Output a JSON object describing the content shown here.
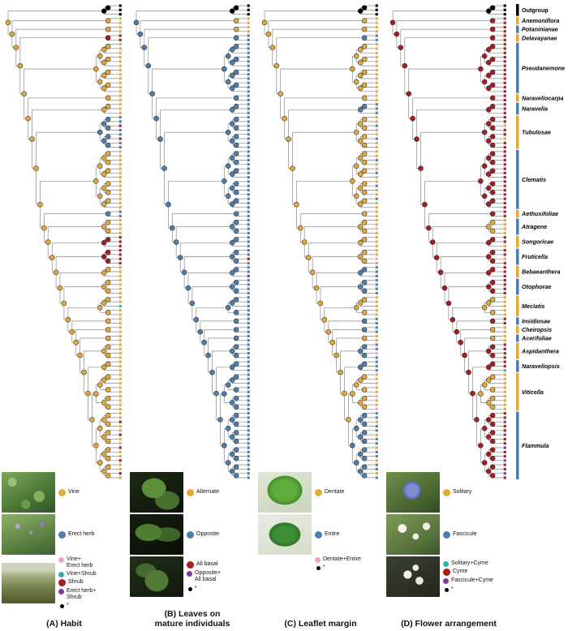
{
  "figure": {
    "colors": {
      "Y": "#E2A93B",
      "B": "#4E7FAC",
      "R": "#A61E22",
      "T": "#3AADA8",
      "P": "#F2A3C5",
      "V": "#7C3E98",
      "K": "#000000"
    },
    "clades": [
      {
        "name": "Outgroup",
        "tips": 3,
        "bar": "K",
        "italic": false
      },
      {
        "name": "Anemoniflora",
        "tips": 2,
        "bar": "Y",
        "italic": true
      },
      {
        "name": "Potaninianae",
        "tips": 2,
        "bar": "B",
        "italic": true
      },
      {
        "name": "Delavayanae",
        "tips": 2,
        "bar": "Y",
        "italic": true
      },
      {
        "name": "Pseudanemone",
        "tips": 12,
        "bar": "B",
        "italic": true
      },
      {
        "name": "Naraveliocarpa",
        "tips": 2,
        "bar": "Y",
        "italic": true
      },
      {
        "name": "Naravelia",
        "tips": 3,
        "bar": "B",
        "italic": true
      },
      {
        "name": "Tubulosae",
        "tips": 8,
        "bar": "Y",
        "italic": true
      },
      {
        "name": "Clematis",
        "tips": 14,
        "bar": "B",
        "italic": true
      },
      {
        "name": "Aethusifoliae",
        "tips": 2,
        "bar": "Y",
        "italic": true
      },
      {
        "name": "Atragene",
        "tips": 4,
        "bar": "B",
        "italic": true
      },
      {
        "name": "Songoricae",
        "tips": 3,
        "bar": "Y",
        "italic": true
      },
      {
        "name": "Fruticella",
        "tips": 4,
        "bar": "B",
        "italic": true
      },
      {
        "name": "Bebaeanthera",
        "tips": 3,
        "bar": "Y",
        "italic": true
      },
      {
        "name": "Otophorae",
        "tips": 4,
        "bar": "B",
        "italic": true
      },
      {
        "name": "Meclatis",
        "tips": 5,
        "bar": "Y",
        "italic": true
      },
      {
        "name": "Insidiosae",
        "tips": 2,
        "bar": "B",
        "italic": true
      },
      {
        "name": "Cheiropsis",
        "tips": 2,
        "bar": "Y",
        "italic": true
      },
      {
        "name": "Acerifoliae",
        "tips": 2,
        "bar": "B",
        "italic": true
      },
      {
        "name": "Aspidanthera",
        "tips": 4,
        "bar": "Y",
        "italic": true
      },
      {
        "name": "Naraveliopsis",
        "tips": 3,
        "bar": "B",
        "italic": true
      },
      {
        "name": "Viticella",
        "tips": 9,
        "bar": "Y",
        "italic": true
      },
      {
        "name": "Flammula",
        "tips": 16,
        "bar": "B",
        "italic": true
      }
    ],
    "panels": [
      {
        "id": "A",
        "title": "(A) Habit",
        "backbone": "Y",
        "clade_states": [
          "K",
          "Y",
          "Y",
          "R",
          "Y",
          "Y",
          "Y",
          [
            "B",
            "R"
          ],
          "Y",
          "B",
          "Y",
          "R",
          "R",
          "Y",
          "Y",
          [
            "Y",
            "T"
          ],
          "Y",
          "Y",
          "Y",
          "Y",
          "Y",
          "Y",
          [
            "Y",
            "R"
          ]
        ],
        "legend_rows": [
          {
            "photo": "vine-photo",
            "items": [
              {
                "label": "Vine",
                "color": "Y",
                "big": true
              }
            ]
          },
          {
            "photo": "erect-herb-photo",
            "items": [
              {
                "label": "Erect herb",
                "color": "B",
                "big": true
              }
            ]
          },
          {
            "photo": "shrub-photo",
            "items": [
              {
                "label": "Vine+|Erect herb",
                "color": "P"
              },
              {
                "label": "Vine+Shrub",
                "color": "T"
              },
              {
                "label": "Shrub",
                "color": "R",
                "big": true
              },
              {
                "label": "Erect herb+|Shrub",
                "color": "V"
              },
              {
                "label": "*",
                "color": "K",
                "star": true
              }
            ]
          }
        ]
      },
      {
        "id": "B",
        "title": "(B) Leaves on\nmature individuals",
        "backbone": "B",
        "clade_states": [
          "K",
          "Y",
          "Y",
          "B",
          "B",
          "B",
          "B",
          "B",
          "B",
          "B",
          "B",
          "B",
          [
            "B",
            "R"
          ],
          [
            "B",
            "V"
          ],
          "B",
          "B",
          "B",
          "B",
          "B",
          "B",
          "B",
          "B",
          "B"
        ],
        "legend_rows": [
          {
            "photo": "alternate-leaves-photo",
            "items": [
              {
                "label": "Alternate",
                "color": "Y",
                "big": true
              }
            ]
          },
          {
            "photo": "opposite-leaves-photo",
            "items": [
              {
                "label": "Opposite",
                "color": "B",
                "big": true
              }
            ]
          },
          {
            "photo": "basal-leaves-photo",
            "items": [
              {
                "label": "All basal",
                "color": "R",
                "big": true
              },
              {
                "label": "Opposite+|All basal",
                "color": "V"
              },
              {
                "label": "*",
                "color": "K",
                "star": true
              }
            ]
          }
        ]
      },
      {
        "id": "C",
        "title": "(C) Leaflet margin",
        "backbone": "Y",
        "clade_states": [
          "K",
          "Y",
          "Y",
          "B",
          "Y",
          "Y",
          "B",
          [
            "Y",
            "B"
          ],
          [
            "Y",
            "B"
          ],
          "Y",
          [
            "Y",
            "P"
          ],
          "Y",
          [
            "Y",
            "P"
          ],
          "B",
          "B",
          "Y",
          "B",
          "B",
          "Y",
          [
            "B",
            "P"
          ],
          "B",
          [
            "Y",
            "P"
          ],
          [
            "B",
            "Y"
          ]
        ],
        "legend_rows": [
          {
            "photo": "dentate-leaf-photo",
            "items": [
              {
                "label": "Dentate",
                "color": "Y",
                "big": true
              }
            ]
          },
          {
            "photo": "entire-leaf-photo",
            "items": [
              {
                "label": "Entire",
                "color": "B",
                "big": true
              }
            ]
          },
          {
            "photo": null,
            "items": [
              {
                "label": "Dentate+Entire",
                "color": "P"
              },
              {
                "label": "*",
                "color": "K",
                "star": true
              }
            ]
          }
        ]
      },
      {
        "id": "D",
        "title": "(D) Flower arrangement",
        "backbone": "R",
        "clade_states": [
          "K",
          "R",
          "R",
          "R",
          "R",
          "R",
          "R",
          [
            "R",
            "Y"
          ],
          "R",
          "R",
          "Y",
          [
            "R",
            "Y"
          ],
          [
            "R",
            "Y"
          ],
          "R",
          "R",
          "Y",
          "R",
          "Y",
          "Y",
          "R",
          [
            "R",
            "T"
          ],
          "Y",
          [
            "R",
            "V"
          ]
        ],
        "legend_rows": [
          {
            "photo": "solitary-flower-photo",
            "items": [
              {
                "label": "Solitary",
                "color": "Y",
                "big": true
              }
            ]
          },
          {
            "photo": "fascicule-flowers-photo",
            "items": [
              {
                "label": "Fascicule",
                "color": "B",
                "big": true
              }
            ]
          },
          {
            "photo": "cyme-flowers-photo",
            "items": [
              {
                "label": "Solitary+Cyme",
                "color": "T"
              },
              {
                "label": "Cyme",
                "color": "R",
                "big": true
              },
              {
                "label": "Fascicule+Cyme",
                "color": "V"
              },
              {
                "label": "*",
                "color": "K",
                "star": true
              }
            ]
          }
        ]
      }
    ]
  }
}
